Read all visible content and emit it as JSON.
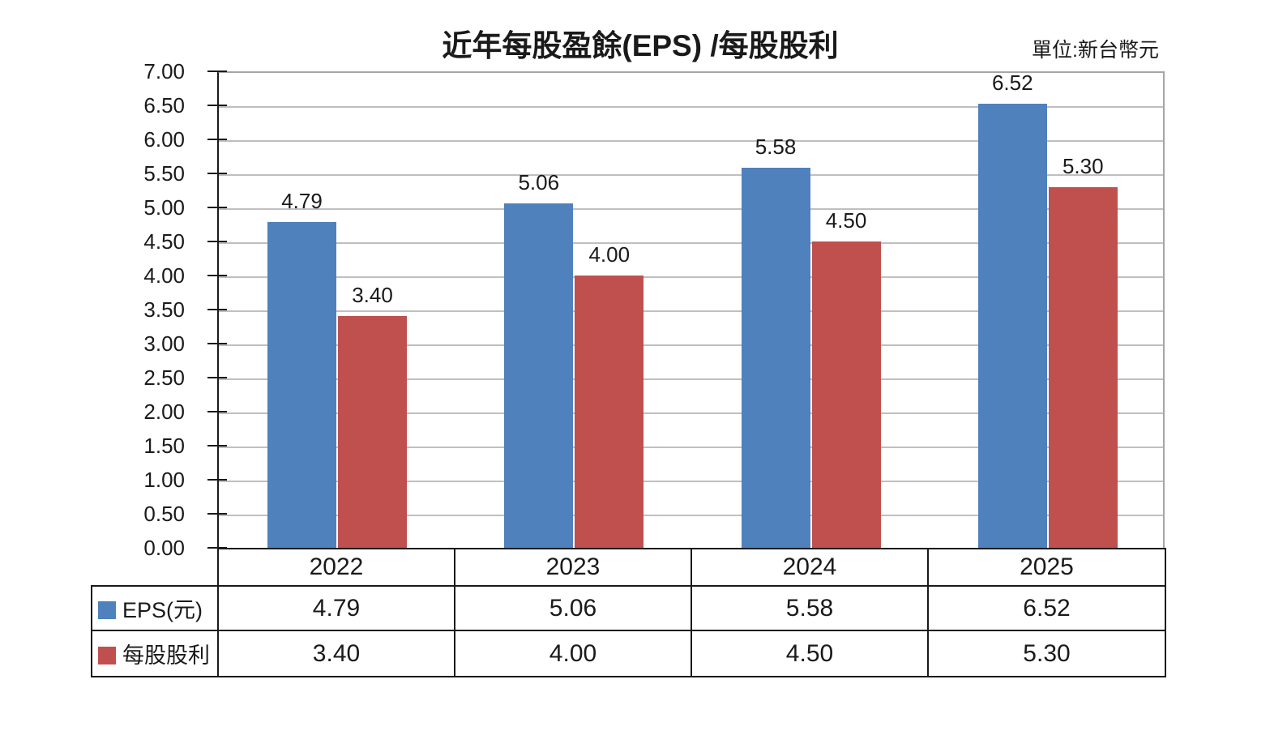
{
  "chart_data": {
    "type": "bar",
    "title": "近年每股盈餘(EPS) /每股股利",
    "unit_label": "單位:新台幣元",
    "categories": [
      "2022",
      "2023",
      "2024",
      "2025"
    ],
    "series": [
      {
        "name": "EPS(元)",
        "color": "#4F81BD",
        "values": [
          4.79,
          5.06,
          5.58,
          6.52
        ]
      },
      {
        "name": "每股股利",
        "color": "#C0504D",
        "values": [
          3.4,
          4.0,
          4.5,
          5.3
        ]
      }
    ],
    "value_labels": [
      [
        "4.79",
        "5.06",
        "5.58",
        "6.52"
      ],
      [
        "3.40",
        "4.00",
        "4.50",
        "5.30"
      ]
    ],
    "ylim": [
      0,
      7
    ],
    "ytick_step": 0.5,
    "y_tick_labels": [
      "0.00",
      "0.50",
      "1.00",
      "1.50",
      "2.00",
      "2.50",
      "3.00",
      "3.50",
      "4.00",
      "4.50",
      "5.00",
      "5.50",
      "6.00",
      "6.50",
      "7.00"
    ],
    "grid": true,
    "legend_position": "table-left",
    "colors": {
      "eps_bar": "#4F81BD",
      "dividend_bar": "#C0504D",
      "gridline": "#BFBFBF",
      "plot_border": "#A6A6A6",
      "axis": "#1A1A1A",
      "table_border": "#1A1A1A",
      "text": "#1A1A1A"
    }
  }
}
